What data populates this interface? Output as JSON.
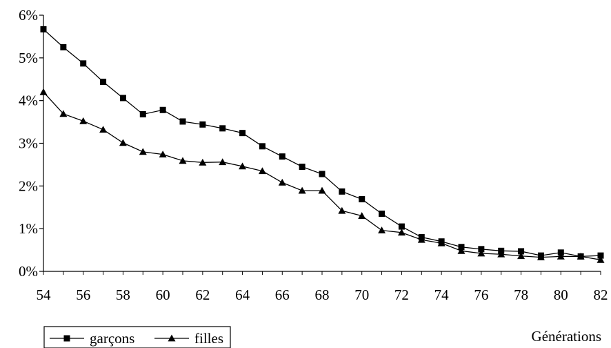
{
  "chart_data": {
    "type": "line",
    "title": "",
    "xlabel": "Générations",
    "ylabel": "",
    "x": [
      54,
      55,
      56,
      57,
      58,
      59,
      60,
      61,
      62,
      63,
      64,
      65,
      66,
      67,
      68,
      69,
      70,
      71,
      72,
      73,
      74,
      75,
      76,
      77,
      78,
      79,
      80,
      81,
      82
    ],
    "x_ticks": [
      "54",
      "56",
      "58",
      "60",
      "62",
      "64",
      "66",
      "68",
      "70",
      "72",
      "74",
      "76",
      "78",
      "80",
      "82"
    ],
    "y_ticks": [
      "0%",
      "1%",
      "2%",
      "3%",
      "4%",
      "5%",
      "6%"
    ],
    "xlim": [
      54,
      82
    ],
    "ylim": [
      0,
      6
    ],
    "grid": false,
    "legend_position": "bottom-left",
    "series": [
      {
        "name": "garçons",
        "marker": "square",
        "color": "#000000",
        "values": [
          5.67,
          5.25,
          4.87,
          4.44,
          4.06,
          3.68,
          3.78,
          3.51,
          3.44,
          3.35,
          3.24,
          2.93,
          2.69,
          2.45,
          2.28,
          1.87,
          1.69,
          1.35,
          1.05,
          0.8,
          0.7,
          0.57,
          0.52,
          0.48,
          0.47,
          0.37,
          0.44,
          0.35,
          0.37
        ]
      },
      {
        "name": "filles",
        "marker": "triangle",
        "color": "#000000",
        "values": [
          4.2,
          3.69,
          3.52,
          3.32,
          3.01,
          2.8,
          2.74,
          2.59,
          2.55,
          2.56,
          2.46,
          2.35,
          2.08,
          1.89,
          1.89,
          1.42,
          1.3,
          0.96,
          0.91,
          0.74,
          0.66,
          0.48,
          0.42,
          0.4,
          0.36,
          0.33,
          0.35,
          0.35,
          0.27
        ]
      }
    ]
  }
}
